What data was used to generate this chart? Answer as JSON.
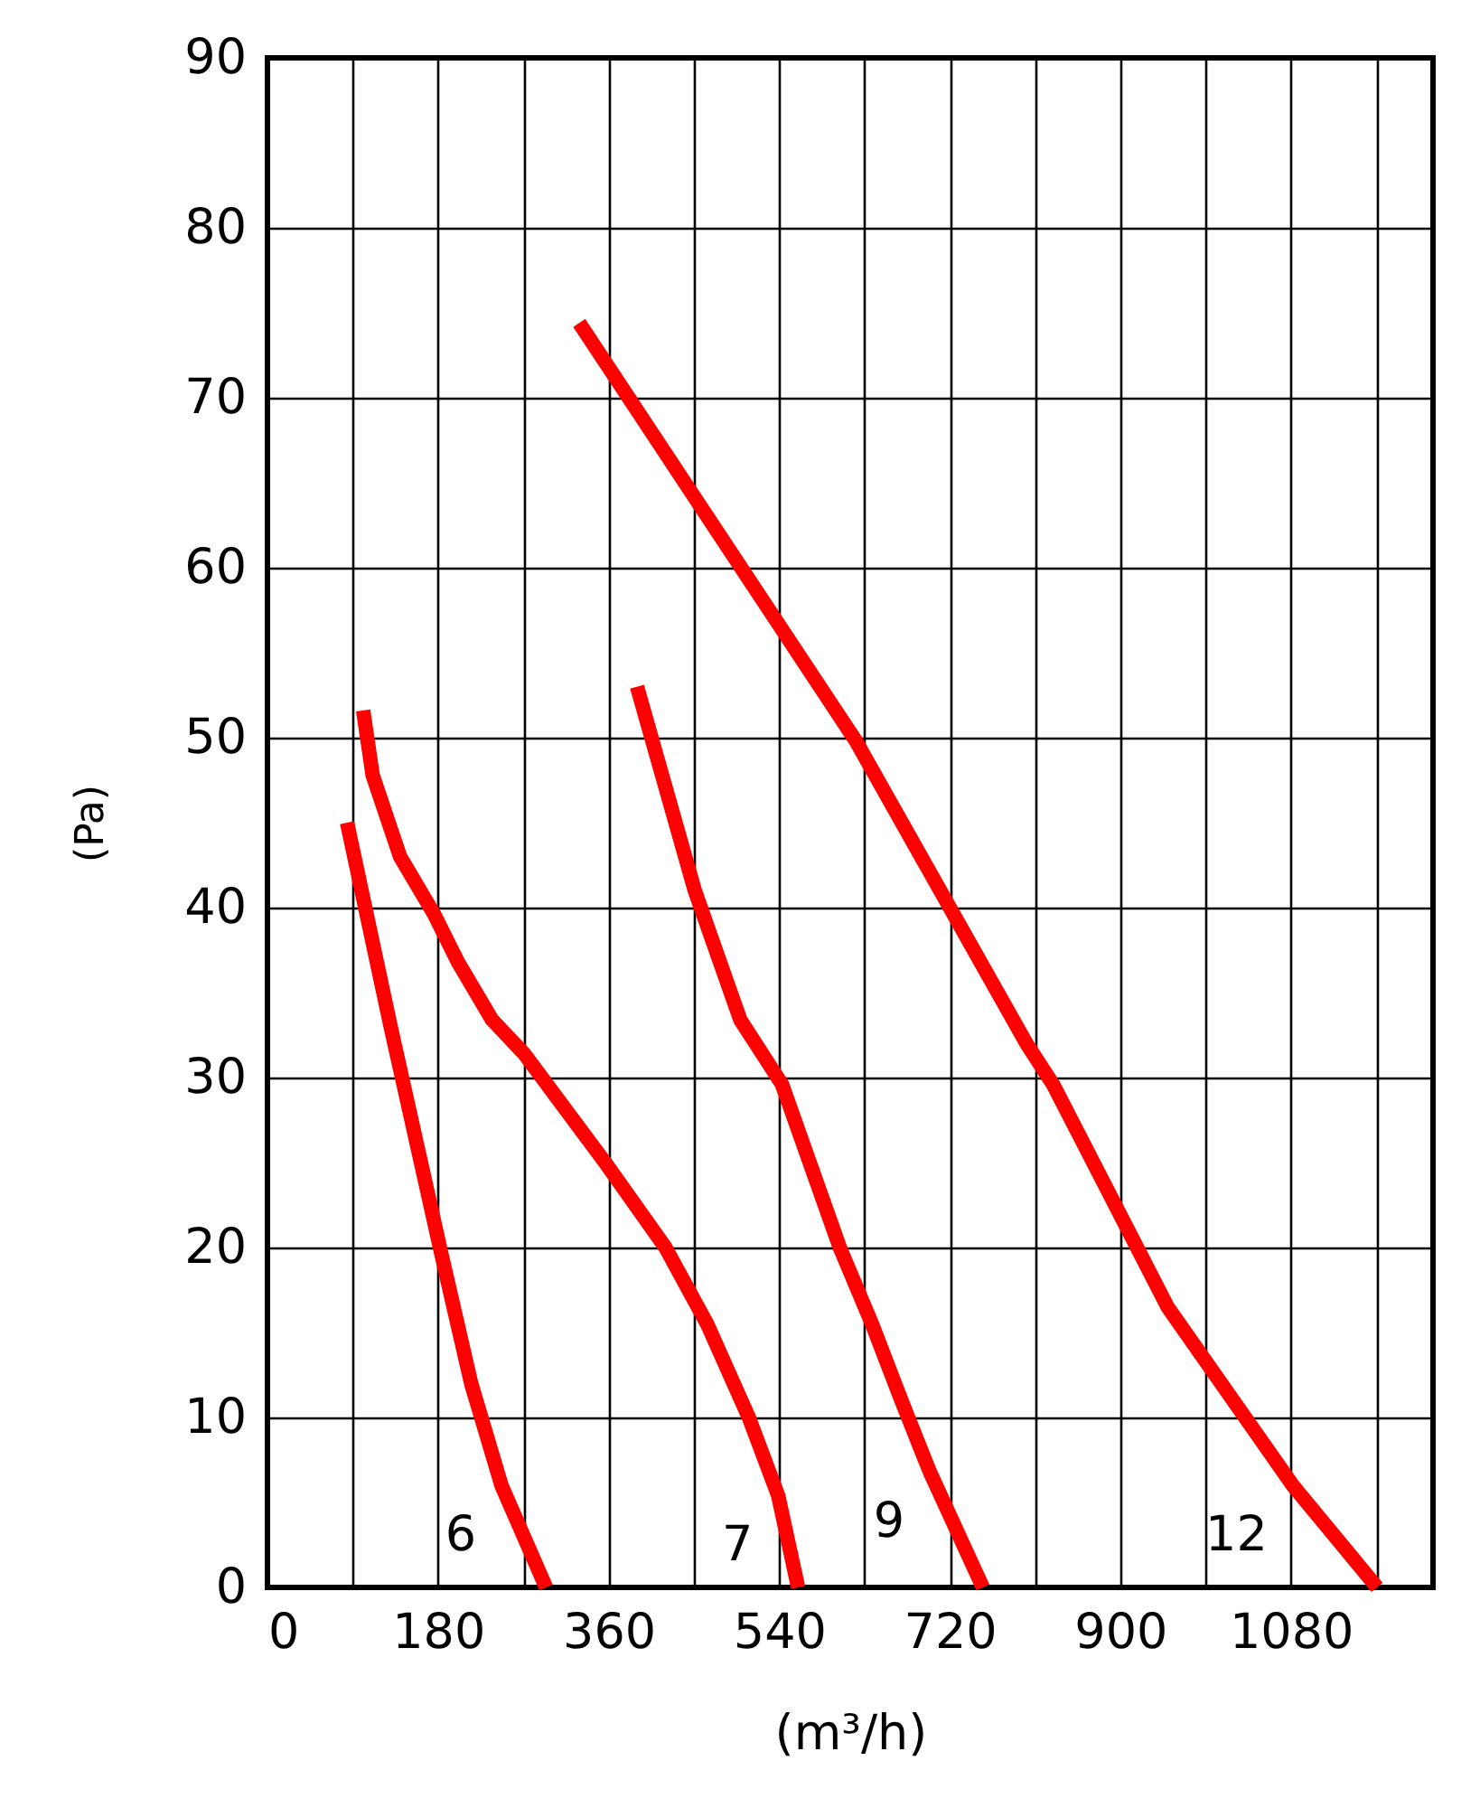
{
  "chart_data": {
    "type": "line",
    "xlabel": "(m³/h)",
    "ylabel": "(Pa)",
    "xlim": [
      0,
      1230
    ],
    "ylim": [
      0,
      90
    ],
    "xticks": [
      0,
      {
        "value": 90,
        "label": null
      },
      180,
      {
        "value": 270,
        "label": null
      },
      360,
      {
        "value": 450,
        "label": null
      },
      540,
      {
        "value": 630,
        "label": null
      },
      720,
      {
        "value": 810,
        "label": null
      },
      900,
      {
        "value": 990,
        "label": null
      },
      1080,
      {
        "value": 1170,
        "label": null
      }
    ],
    "yticks": [
      0,
      10,
      20,
      30,
      40,
      50,
      60,
      70,
      80,
      90
    ],
    "grid": true,
    "legend": false,
    "marker": "none",
    "line_style": "solid",
    "series": [
      {
        "name": "6",
        "color": "#ff0000",
        "x": [
          84,
          130,
          182,
          215,
          247,
          294
        ],
        "values": [
          45,
          33,
          20,
          12,
          6,
          0
        ]
      },
      {
        "name": "7",
        "color": "#ff0000",
        "x": [
          101,
          111,
          140,
          176,
          201,
          237,
          271,
          359,
          420,
          464,
          508,
          539,
          560
        ],
        "values": [
          51.6,
          47.8,
          43,
          39.6,
          36.8,
          33.4,
          31.4,
          24.8,
          20,
          15.5,
          10,
          5.4,
          0
        ]
      },
      {
        "name": "9",
        "color": "#ff0000",
        "x": [
          390,
          451,
          499,
          543,
          604,
          638,
          669,
          699,
          755
        ],
        "values": [
          53,
          41,
          33.4,
          29.6,
          20,
          15.5,
          11,
          6.8,
          0
        ]
      },
      {
        "name": "12",
        "color": "#ff0000",
        "x": [
          329,
          621,
          801,
          829,
          950,
          994,
          1082,
          1171
        ],
        "values": [
          74.4,
          49.8,
          32,
          29.6,
          16.5,
          13,
          6,
          0
        ]
      }
    ]
  }
}
